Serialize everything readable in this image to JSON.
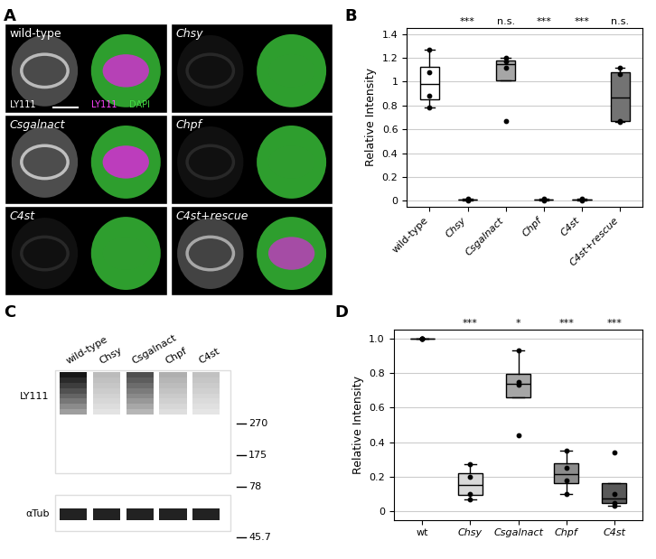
{
  "chart_data": [
    {
      "type": "box",
      "categories": [
        "wild-type",
        "Chsy",
        "Csgalnact",
        "Chpf",
        "C4st",
        "C4st+rescue"
      ],
      "values": [
        [
          1.27,
          1.08,
          0.88,
          0.78
        ],
        [
          0.01,
          0.02,
          0.01,
          0.0
        ],
        [
          0.67,
          1.12,
          1.17,
          1.2
        ],
        [
          0.01,
          0.0,
          0.01,
          0.02
        ],
        [
          0.01,
          0.02,
          0.0,
          0.01
        ],
        [
          1.12,
          1.06,
          0.67,
          0.66
        ]
      ],
      "colors": [
        "#ffffff",
        "#d9d9d9",
        "#a6a6a6",
        "#8c8c8c",
        "#595959",
        "#737373"
      ],
      "annotations": [
        null,
        "***",
        "n.s.",
        "***",
        "***",
        "n.s."
      ],
      "y_label": "Relative Intensity",
      "ylim": [
        -0.05,
        1.45
      ],
      "yticks": [
        0,
        0.2,
        0.4,
        0.6,
        0.8,
        1,
        1.2,
        1.4
      ],
      "grid": true
    },
    {
      "type": "box",
      "categories": [
        "wt",
        "Chsy",
        "Csgalnact",
        "Chpf",
        "C4st"
      ],
      "values": [
        [
          1.0,
          1.0,
          1.0,
          1.0
        ],
        [
          0.27,
          0.2,
          0.1,
          0.07
        ],
        [
          0.93,
          0.75,
          0.73,
          0.44
        ],
        [
          0.35,
          0.25,
          0.18,
          0.1
        ],
        [
          0.34,
          0.1,
          0.05,
          0.03
        ]
      ],
      "colors": [
        "#ffffff",
        "#d9d9d9",
        "#a6a6a6",
        "#8c8c8c",
        "#595959"
      ],
      "annotations": [
        null,
        "***",
        "*",
        "***",
        "***"
      ],
      "y_label": "Relative Intensity",
      "ylim": [
        -0.05,
        1.05
      ],
      "yticks": [
        0,
        0.2,
        0.4,
        0.6,
        0.8,
        1.0
      ],
      "grid": true
    }
  ],
  "panels": {
    "letters": [
      "A",
      "B",
      "C",
      "D"
    ],
    "A": {
      "tiles": [
        "wild-type",
        "Chsy",
        "Csgalnact",
        "Chpf",
        "C4st",
        "C4st+rescue"
      ],
      "stain_labels": [
        "LY111",
        "LY111",
        "DAPI"
      ]
    },
    "C": {
      "lanes": [
        "wild-type",
        "Chsy",
        "Csgalnact",
        "Chpf",
        "C4st"
      ],
      "blot_labels": [
        "LY111",
        "αTub"
      ],
      "markers": [
        270,
        175,
        78,
        45.7
      ]
    }
  }
}
